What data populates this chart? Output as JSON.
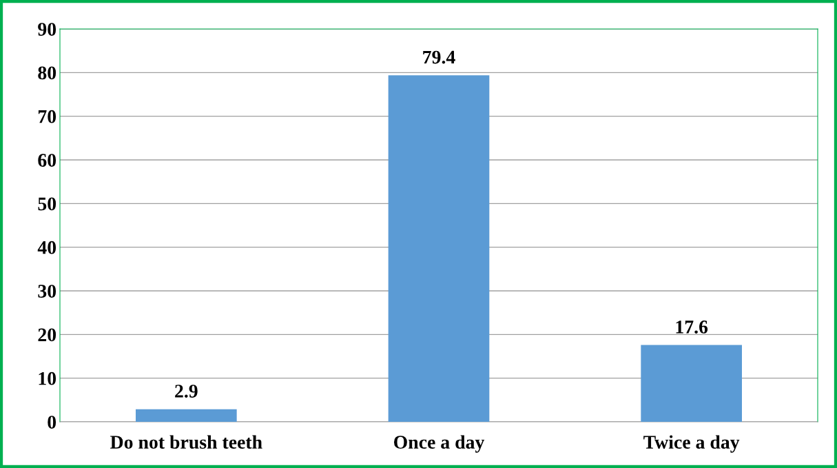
{
  "chart_data": {
    "type": "bar",
    "categories": [
      "Do not brush teeth",
      "Once a day",
      "Twice a day"
    ],
    "values": [
      2.9,
      79.4,
      17.6
    ],
    "color": "#5b9bd5",
    "ylim": [
      0,
      90
    ],
    "yticks": [
      0,
      10,
      20,
      30,
      40,
      50,
      60,
      70,
      80,
      90
    ],
    "grid": "y",
    "data_labels": true,
    "legend": false
  }
}
